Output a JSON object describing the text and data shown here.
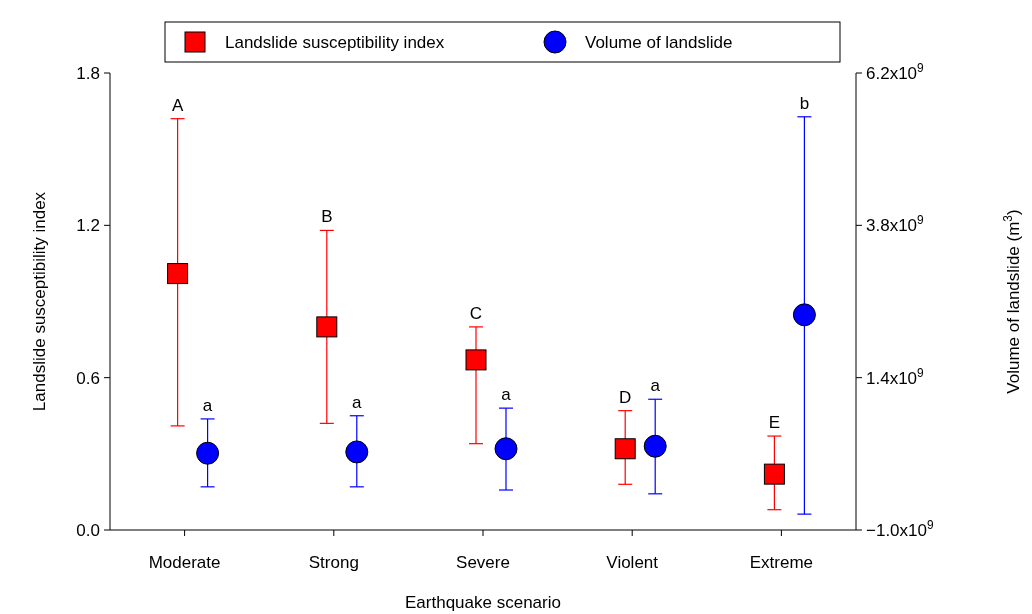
{
  "chart_data": {
    "type": "scatter",
    "xlabel": "Earthquake scenario",
    "ylabel": "Landslide susceptibility index",
    "y2label": "Volume of landslide (m$^{3}$)",
    "categories": [
      "Moderate",
      "Strong",
      "Severe",
      "Violent",
      "Extreme"
    ],
    "series": [
      {
        "name": "Landslide susceptibility index",
        "color": "#ff0000",
        "marker": "square",
        "values": [
          1.01,
          0.8,
          0.67,
          0.32,
          0.22
        ],
        "errors": [
          [
            0.41,
            1.62
          ],
          [
            0.42,
            1.18
          ],
          [
            0.34,
            0.8
          ],
          [
            0.18,
            0.47
          ],
          [
            0.08,
            0.37
          ]
        ]
      },
      {
        "name": "Volume of landslide",
        "color": "#0000ff",
        "marker": "circle",
        "axis": "y2",
        "values": [
          210000000,
          230000000,
          280000000,
          320000000,
          2390000000
        ],
        "errors": [
          [
            -320000000,
            750000000
          ],
          [
            -320000000,
            800000000
          ],
          [
            -370000000,
            920000000
          ],
          [
            -430000000,
            1060000000
          ],
          [
            -750000000,
            5510000000
          ]
        ]
      }
    ],
    "ylim": [
      0,
      1.8
    ],
    "yticks": [
      {
        "value": 0,
        "label": "0.0"
      },
      0.6,
      1.2,
      1.8
    ],
    "y2lim": [
      -1000000000,
      6200000000
    ],
    "y2ticks": [
      {
        "value": -1000000000,
        "label": "−1.0x10$^{9}$"
      },
      {
        "value": 1400000000,
        "label": "1.4x10$^{9}$"
      },
      {
        "value": 3800000000,
        "label": "3.8x10$^{9}$"
      },
      {
        "value": 6200000000,
        "label": "6.2x10$^{9}$"
      }
    ],
    "annotations": [
      "A",
      "B",
      "C",
      "D",
      "E",
      "a",
      "a",
      "a",
      "a",
      "b"
    ],
    "grid": false,
    "legend": "top"
  }
}
